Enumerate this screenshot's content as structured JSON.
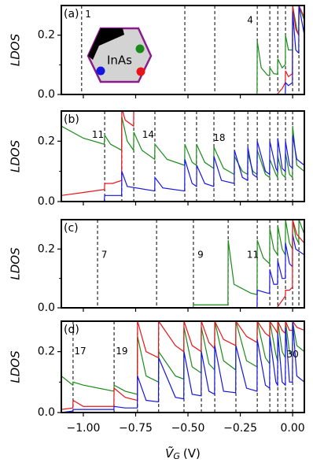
{
  "chart_data": [
    {
      "type": "line",
      "panel_label": "(a)",
      "ylabel": "LDOS",
      "inset_label": "InAs",
      "xlim": [
        -1.105,
        0.056
      ],
      "ylim": [
        0,
        0.3
      ],
      "yticks": [
        {
          "value": 0,
          "label": "0.0"
        },
        0.2
      ],
      "yminor": [
        0.1
      ],
      "vlines": [
        -1.008,
        -0.515,
        -0.372,
        -0.169,
        -0.109,
        -0.071,
        -0.034,
        0.0,
        0.03
      ],
      "annotations": [
        {
          "text": "1",
          "x": -0.977,
          "y": 0.27
        },
        {
          "text": "4",
          "x": -0.203,
          "y": 0.25
        }
      ],
      "series": [
        {
          "color": "#1a8a1a",
          "x": [
            -1.105,
            -0.17,
            -0.169,
            -0.15,
            -0.12,
            -0.11,
            -0.109,
            -0.09,
            -0.072,
            -0.071,
            -0.05,
            -0.035,
            -0.034,
            -0.02,
            -0.001,
            0.0,
            0.02,
            0.029,
            0.03,
            0.056
          ],
          "values": [
            0,
            0,
            0.18,
            0.09,
            0.065,
            0.063,
            0.09,
            0.07,
            0.068,
            0.12,
            0.09,
            0.1,
            0.2,
            0.15,
            0.15,
            0.3,
            0.22,
            0.2,
            0.3,
            0.25
          ]
        },
        {
          "color": "#e8141a",
          "x": [
            -1.105,
            -0.075,
            -0.05,
            -0.035,
            -0.034,
            -0.02,
            -0.001,
            0.0,
            0.015,
            0.029,
            0.03,
            0.056
          ],
          "values": [
            0,
            0,
            0.02,
            0.04,
            0.08,
            0.06,
            0.07,
            0.3,
            0.22,
            0.2,
            0.3,
            0.26
          ]
        },
        {
          "color": "#1515e0",
          "x": [
            -1.105,
            -0.035,
            -0.034,
            -0.02,
            -0.001,
            0.0,
            0.015,
            0.029,
            0.03,
            0.056
          ],
          "values": [
            0,
            0,
            0.04,
            0.03,
            0.04,
            0.28,
            0.15,
            0.14,
            0.3,
            0.2
          ]
        }
      ]
    },
    {
      "type": "line",
      "panel_label": "(b)",
      "ylabel": "LDOS",
      "xlim": [
        -1.105,
        0.056
      ],
      "ylim": [
        0,
        0.3
      ],
      "yticks": [
        {
          "value": 0,
          "label": "0.0"
        },
        0.2
      ],
      "yminor": [
        0.1
      ],
      "vlines": [
        -0.898,
        -0.816,
        -0.759,
        -0.658,
        -0.515,
        -0.459,
        -0.376,
        -0.278,
        -0.214,
        -0.169,
        -0.109,
        -0.071,
        -0.034,
        0.0
      ],
      "annotations": [
        {
          "text": "11",
          "x": -0.93,
          "y": 0.22
        },
        {
          "text": "14",
          "x": -0.69,
          "y": 0.22
        },
        {
          "text": "18",
          "x": -0.35,
          "y": 0.21
        }
      ],
      "series": [
        {
          "color": "#1a8a1a",
          "x": [
            -1.105,
            -1.0,
            -0.9,
            -0.898,
            -0.87,
            -0.817,
            -0.816,
            -0.79,
            -0.76,
            -0.759,
            -0.72,
            -0.659,
            -0.658,
            -0.6,
            -0.516,
            -0.515,
            -0.48,
            -0.46,
            -0.459,
            -0.42,
            -0.377,
            -0.376,
            -0.33,
            -0.279,
            -0.278,
            -0.24,
            -0.215,
            -0.214,
            -0.19,
            -0.17,
            -0.169,
            -0.13,
            -0.11,
            -0.109,
            -0.08,
            -0.072,
            -0.071,
            -0.05,
            -0.035,
            -0.034,
            -0.015,
            -0.001,
            0.0,
            0.02,
            0.056
          ],
          "values": [
            0.25,
            0.21,
            0.19,
            0.22,
            0.19,
            0.17,
            0.28,
            0.2,
            0.17,
            0.23,
            0.17,
            0.14,
            0.19,
            0.14,
            0.12,
            0.19,
            0.13,
            0.12,
            0.19,
            0.13,
            0.11,
            0.18,
            0.11,
            0.09,
            0.15,
            0.1,
            0.09,
            0.16,
            0.1,
            0.09,
            0.17,
            0.09,
            0.08,
            0.14,
            0.09,
            0.08,
            0.15,
            0.09,
            0.08,
            0.16,
            0.09,
            0.08,
            0.25,
            0.12,
            0.1
          ]
        },
        {
          "color": "#e8141a",
          "x": [
            -1.105,
            -1.0,
            -0.899,
            -0.898,
            -0.86,
            -0.817,
            -0.816,
            -0.8,
            -0.76,
            -0.759,
            -0.74,
            0.056
          ],
          "values": [
            0.02,
            0.03,
            0.04,
            0.06,
            0.06,
            0.07,
            0.31,
            0.27,
            0.25,
            0.31,
            0.31,
            0.31
          ]
        },
        {
          "color": "#1515e0",
          "x": [
            -1.105,
            -0.9,
            -0.898,
            -0.87,
            -0.817,
            -0.816,
            -0.79,
            -0.659,
            -0.658,
            -0.62,
            -0.516,
            -0.515,
            -0.48,
            -0.459,
            -0.458,
            -0.42,
            -0.377,
            -0.376,
            -0.34,
            -0.279,
            -0.278,
            -0.24,
            -0.215,
            -0.214,
            -0.19,
            -0.17,
            -0.169,
            -0.13,
            -0.11,
            -0.109,
            -0.08,
            -0.072,
            -0.071,
            -0.05,
            -0.035,
            -0.034,
            -0.015,
            -0.001,
            0.0,
            0.02,
            0.056
          ],
          "values": [
            0,
            0,
            0.02,
            0.02,
            0.02,
            0.1,
            0.05,
            0.035,
            0.08,
            0.045,
            0.035,
            0.14,
            0.06,
            0.05,
            0.12,
            0.06,
            0.05,
            0.15,
            0.07,
            0.06,
            0.17,
            0.08,
            0.07,
            0.18,
            0.09,
            0.08,
            0.2,
            0.1,
            0.09,
            0.2,
            0.11,
            0.1,
            0.21,
            0.11,
            0.1,
            0.2,
            0.12,
            0.11,
            0.22,
            0.14,
            0.12
          ]
        }
      ]
    },
    {
      "type": "line",
      "panel_label": "(c)",
      "ylabel": "LDOS",
      "xlim": [
        -1.105,
        0.056
      ],
      "ylim": [
        0,
        0.3
      ],
      "yticks": [
        {
          "value": 0,
          "label": "0.0"
        },
        0.2
      ],
      "yminor": [
        0.1
      ],
      "vlines": [
        -0.932,
        -0.65,
        -0.474,
        -0.308,
        -0.169,
        -0.109,
        -0.071,
        -0.034,
        0.0,
        0.03
      ],
      "annotations": [
        {
          "text": "7",
          "x": -0.9,
          "y": 0.18
        },
        {
          "text": "9",
          "x": -0.44,
          "y": 0.18
        },
        {
          "text": "11",
          "x": -0.19,
          "y": 0.18
        }
      ],
      "series": [
        {
          "color": "#1a8a1a",
          "x": [
            -1.105,
            -0.475,
            -0.474,
            -0.309,
            -0.308,
            -0.28,
            -0.2,
            -0.17,
            -0.169,
            -0.14,
            -0.11,
            -0.109,
            -0.09,
            -0.072,
            -0.071,
            -0.05,
            -0.035,
            -0.034,
            -0.015,
            -0.001,
            0.0,
            0.015,
            0.029,
            0.03,
            0.056
          ],
          "values": [
            0,
            0,
            0.01,
            0.01,
            0.23,
            0.08,
            0.05,
            0.045,
            0.23,
            0.17,
            0.15,
            0.27,
            0.2,
            0.18,
            0.28,
            0.2,
            0.18,
            0.3,
            0.22,
            0.2,
            0.3,
            0.24,
            0.22,
            0.3,
            0.25
          ]
        },
        {
          "color": "#1515e0",
          "x": [
            -1.105,
            -0.17,
            -0.169,
            -0.12,
            -0.11,
            -0.109,
            -0.09,
            -0.072,
            -0.071,
            -0.05,
            -0.035,
            -0.034,
            -0.015,
            -0.001,
            0.0,
            0.015,
            0.056
          ],
          "values": [
            0,
            0,
            0.06,
            0.05,
            0.05,
            0.13,
            0.08,
            0.08,
            0.16,
            0.1,
            0.1,
            0.22,
            0.15,
            0.14,
            0.25,
            0.2,
            0.18
          ]
        },
        {
          "color": "#e8141a",
          "x": [
            -1.105,
            -0.075,
            -0.035,
            -0.034,
            -0.015,
            -0.001,
            0.0,
            0.02,
            0.056
          ],
          "values": [
            0,
            0,
            0.04,
            0.06,
            0.06,
            0.07,
            0.3,
            0.25,
            0.22
          ]
        }
      ]
    },
    {
      "type": "line",
      "panel_label": "(d)",
      "ylabel": "LDOS",
      "xlabel": {
        "symbol": "Ṽ",
        "subscript": "G",
        "unit": "(V)"
      },
      "xlim": [
        -1.105,
        0.056
      ],
      "ylim": [
        0,
        0.3
      ],
      "xticks": [
        {
          "value": -1,
          "label": "−1.00"
        },
        {
          "value": -0.75,
          "label": "−0.75"
        },
        {
          "value": -0.5,
          "label": "−0.50"
        },
        {
          "value": -0.25,
          "label": "−0.25"
        },
        {
          "value": 0,
          "label": "0.00"
        }
      ],
      "yticks": [
        {
          "value": 0,
          "label": "0.0"
        },
        0.2
      ],
      "yminor": [
        0.1
      ],
      "vlines": [
        -1.049,
        -0.853,
        -0.741,
        -0.64,
        -0.519,
        -0.436,
        -0.372,
        -0.271,
        -0.169,
        -0.109,
        -0.071,
        -0.034,
        0.0
      ],
      "annotations": [
        {
          "text": "17",
          "x": -1.015,
          "y": 0.2
        },
        {
          "text": "19",
          "x": -0.816,
          "y": 0.2
        },
        {
          "text": "30",
          "x": 0.0,
          "y": 0.19
        }
      ],
      "series": [
        {
          "color": "#1a8a1a",
          "x": [
            -1.105,
            -1.05,
            -1.049,
            -1.0,
            -0.854,
            -0.853,
            -0.8,
            -0.742,
            -0.741,
            -0.7,
            -0.641,
            -0.64,
            -0.56,
            -0.52,
            -0.519,
            -0.48,
            -0.437,
            -0.436,
            -0.4,
            -0.373,
            -0.372,
            -0.33,
            -0.272,
            -0.271,
            -0.22,
            -0.17,
            -0.169,
            -0.13,
            -0.11,
            -0.109,
            -0.08,
            -0.072,
            -0.071,
            -0.05,
            -0.035,
            -0.034,
            -0.015,
            -0.001,
            0.0,
            0.02,
            0.056
          ],
          "values": [
            0.12,
            0.09,
            0.1,
            0.09,
            0.07,
            0.09,
            0.07,
            0.06,
            0.25,
            0.12,
            0.1,
            0.2,
            0.12,
            0.11,
            0.28,
            0.15,
            0.13,
            0.28,
            0.16,
            0.14,
            0.3,
            0.17,
            0.14,
            0.3,
            0.17,
            0.15,
            0.3,
            0.18,
            0.16,
            0.3,
            0.19,
            0.17,
            0.3,
            0.2,
            0.18,
            0.3,
            0.2,
            0.19,
            0.3,
            0.22,
            0.2
          ]
        },
        {
          "color": "#e8141a",
          "x": [
            -1.105,
            -1.05,
            -1.049,
            -1.0,
            -0.854,
            -0.853,
            -0.8,
            -0.742,
            -0.741,
            -0.7,
            -0.641,
            -0.64,
            -0.56,
            -0.52,
            -0.519,
            -0.48,
            -0.437,
            -0.436,
            -0.4,
            -0.373,
            -0.372,
            -0.33,
            -0.272,
            -0.271,
            -0.22,
            -0.17,
            -0.169,
            -0.13,
            -0.11,
            -0.109,
            -0.08,
            -0.072,
            -0.071,
            -0.05,
            -0.035,
            -0.034,
            -0.015,
            -0.001,
            0.0,
            0.02,
            0.056
          ],
          "values": [
            0.01,
            0.015,
            0.04,
            0.02,
            0.02,
            0.08,
            0.05,
            0.04,
            0.3,
            0.2,
            0.18,
            0.3,
            0.22,
            0.2,
            0.3,
            0.22,
            0.2,
            0.3,
            0.23,
            0.21,
            0.3,
            0.24,
            0.22,
            0.3,
            0.25,
            0.23,
            0.3,
            0.26,
            0.25,
            0.3,
            0.27,
            0.26,
            0.3,
            0.27,
            0.26,
            0.3,
            0.27,
            0.27,
            0.3,
            0.28,
            0.27
          ]
        },
        {
          "color": "#1515e0",
          "x": [
            -1.105,
            -1.05,
            -1.049,
            -1.0,
            -0.854,
            -0.853,
            -0.8,
            -0.742,
            -0.741,
            -0.7,
            -0.641,
            -0.64,
            -0.56,
            -0.52,
            -0.519,
            -0.48,
            -0.437,
            -0.436,
            -0.4,
            -0.373,
            -0.372,
            -0.33,
            -0.272,
            -0.271,
            -0.22,
            -0.17,
            -0.169,
            -0.13,
            -0.11,
            -0.109,
            -0.08,
            -0.072,
            -0.071,
            -0.05,
            -0.035,
            -0.034,
            -0.015,
            -0.001,
            0.0,
            0.02,
            0.056
          ],
          "values": [
            0,
            0.005,
            0.01,
            0.01,
            0.01,
            0.02,
            0.015,
            0.015,
            0.12,
            0.04,
            0.035,
            0.18,
            0.05,
            0.045,
            0.2,
            0.06,
            0.055,
            0.2,
            0.07,
            0.06,
            0.22,
            0.07,
            0.065,
            0.22,
            0.08,
            0.07,
            0.24,
            0.09,
            0.08,
            0.25,
            0.1,
            0.09,
            0.26,
            0.1,
            0.09,
            0.28,
            0.1,
            0.1,
            0.3,
            0.12,
            0.1
          ]
        }
      ]
    }
  ]
}
